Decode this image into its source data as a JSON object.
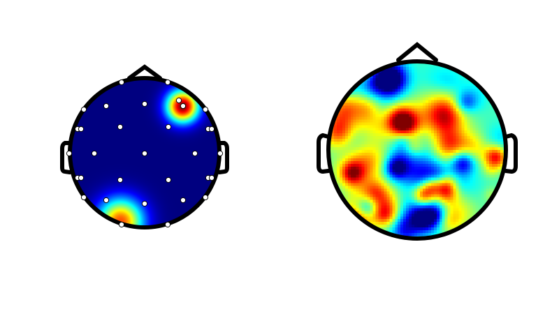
{
  "colormap": "jet",
  "colors": {
    "outline": "#000000",
    "background": "#ffffff",
    "electrode_fill": "#ffffff",
    "electrode_stroke": "#000000",
    "map_low": "#00007f",
    "map_high": "#7f0000"
  },
  "topomaps": [
    {
      "name": "left",
      "pattern": "focal",
      "show_electrodes": true,
      "electrode_count": 32,
      "hotspots": [
        {
          "label": "front-right",
          "value": 1.0
        },
        {
          "label": "back-left",
          "value": 0.8
        }
      ]
    },
    {
      "name": "right",
      "pattern": "noise",
      "show_electrodes": false,
      "pixelated": true
    }
  ]
}
